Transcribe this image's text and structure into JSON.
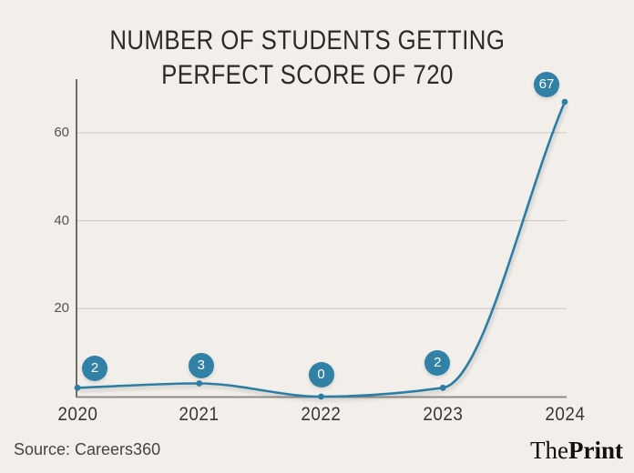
{
  "header": {
    "title_lines": [
      "NUMBER OF STUDENTS GETTING",
      "PERFECT SCORE OF 720"
    ]
  },
  "chart_data": {
    "type": "line",
    "title": "NUMBER OF STUDENTS GETTING PERFECT SCORE OF 720",
    "categories": [
      "2020",
      "2021",
      "2022",
      "2023",
      "2024"
    ],
    "values": [
      2,
      3,
      0,
      2,
      67
    ],
    "xlabel": "",
    "ylabel": "",
    "yticks": [
      20,
      40,
      60
    ],
    "ylim": [
      0,
      72
    ],
    "grid": true,
    "legend": "none",
    "line_color": "#2d7ea4",
    "badge_color": "#3181a7",
    "background_color": "#f2efea",
    "axis_color": "#55524e",
    "baseline_color": "#8f8c88",
    "gridline_color": "#cbc8c3"
  },
  "footer": {
    "source": "Source: Careers360",
    "brand_regular": "The",
    "brand_bold": "Print"
  }
}
